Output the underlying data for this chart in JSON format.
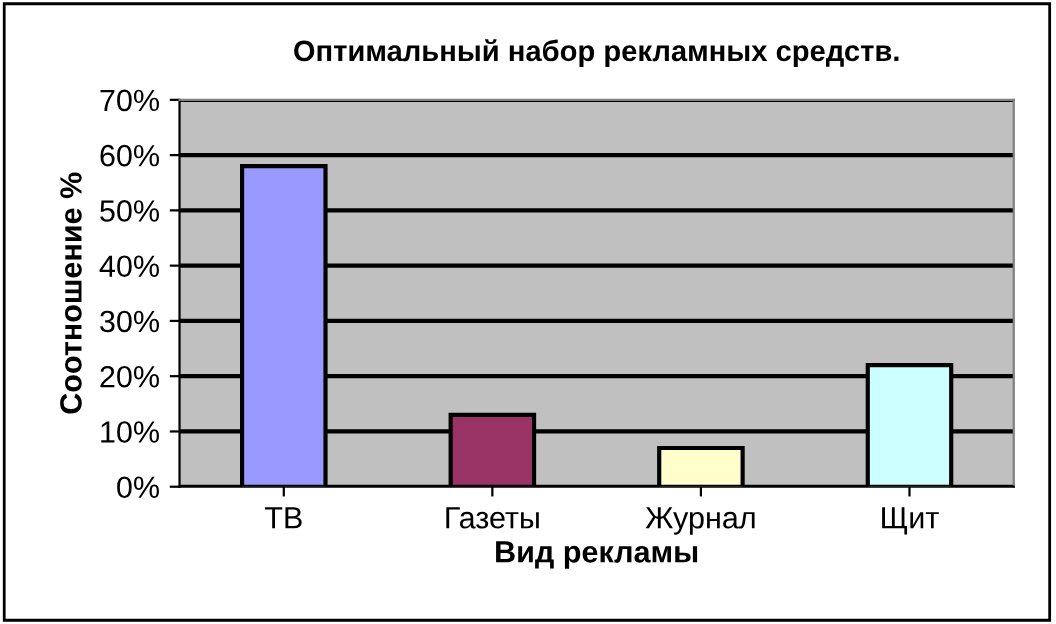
{
  "chart_data": {
    "type": "bar",
    "title": "Оптимальный набор рекламных средств.",
    "xlabel": "Вид рекламы",
    "ylabel": "Соотношение %",
    "categories": [
      "ТВ",
      "Газеты",
      "Журнал",
      "Щит"
    ],
    "values": [
      58,
      13,
      7,
      22
    ],
    "colors": [
      "#9999ff",
      "#993366",
      "#ffffcc",
      "#ccffff"
    ],
    "ylim": [
      0,
      70
    ],
    "yticks": [
      {
        "value": 0,
        "label": "0%"
      },
      {
        "value": 10,
        "label": "10%"
      },
      {
        "value": 20,
        "label": "20%"
      },
      {
        "value": 30,
        "label": "30%"
      },
      {
        "value": 40,
        "label": "40%"
      },
      {
        "value": 50,
        "label": "50%"
      },
      {
        "value": 60,
        "label": "60%"
      },
      {
        "value": 70,
        "label": "70%"
      }
    ],
    "grid": "y"
  }
}
